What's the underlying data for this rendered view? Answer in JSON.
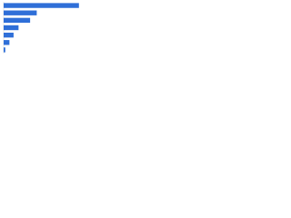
{
  "chart_data": {
    "type": "bar",
    "orientation": "horizontal",
    "categories": [
      null,
      null,
      null,
      null,
      null,
      null,
      null
    ],
    "values": [
      91,
      40,
      32,
      18,
      12,
      7,
      2
    ],
    "color": "#2f6fd8",
    "xlim": [
      0,
      100
    ]
  }
}
